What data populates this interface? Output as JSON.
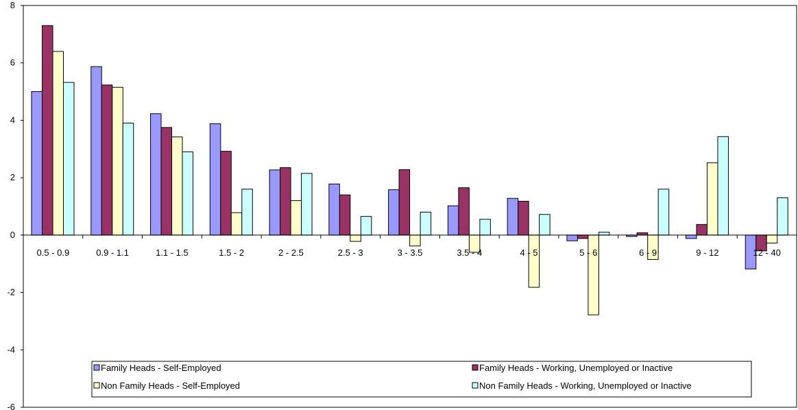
{
  "chart_data": {
    "type": "bar",
    "categories": [
      "0.5 - 0.9",
      "0.9 - 1.1",
      "1.1 - 1.5",
      "1.5 - 2",
      "2 - 2.5",
      "2.5 - 3",
      "3 - 3.5",
      "3.5 - 4",
      "4 - 5",
      "5 - 6",
      "6 - 9",
      "9 - 12",
      "12 - 40"
    ],
    "series": [
      {
        "name": "Family Heads - Self-Employed",
        "color": "#9999ff",
        "values": [
          5.0,
          5.87,
          4.23,
          3.88,
          2.27,
          1.78,
          1.58,
          1.02,
          1.28,
          -0.2,
          -0.05,
          -0.12,
          -1.18
        ]
      },
      {
        "name": "Family Heads - Working, Unemployed or Inactive",
        "color": "#993366",
        "values": [
          7.3,
          5.23,
          3.75,
          2.92,
          2.35,
          1.4,
          2.28,
          1.65,
          1.18,
          -0.12,
          0.08,
          0.37,
          -0.55
        ]
      },
      {
        "name": "Non Family Heads - Self-Employed",
        "color": "#ffffcc",
        "values": [
          6.4,
          5.15,
          3.42,
          0.78,
          1.2,
          -0.22,
          -0.38,
          -0.6,
          -1.82,
          -2.78,
          -0.85,
          2.52,
          -0.28
        ]
      },
      {
        "name": "Non Family Heads - Working, Unemployed or Inactive",
        "color": "#ccffff",
        "values": [
          5.32,
          3.9,
          2.9,
          1.6,
          2.15,
          0.65,
          0.8,
          0.55,
          0.72,
          0.1,
          1.6,
          3.43,
          1.3
        ]
      }
    ],
    "ylim": [
      -6,
      8
    ],
    "yticks": [
      "8",
      "6",
      "4",
      "2",
      "0",
      "-2",
      "-4",
      "-6"
    ],
    "ytick_values": [
      8,
      6,
      4,
      2,
      0,
      -2,
      -4,
      -6
    ],
    "grid": false,
    "legend_position": "bottom-inside",
    "title": "",
    "xlabel": "",
    "ylabel": ""
  }
}
